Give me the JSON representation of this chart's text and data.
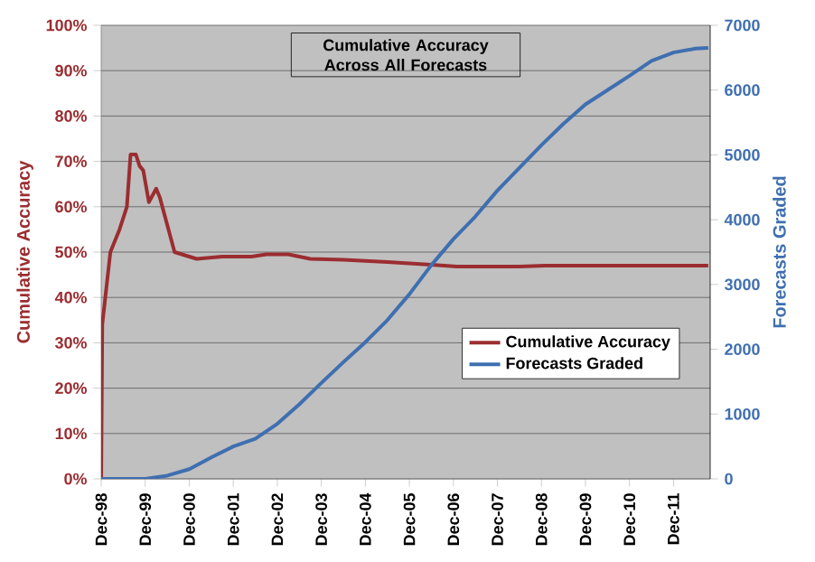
{
  "chart_data": {
    "type": "line",
    "title": "Cumulative Accuracy Across All Forecasts",
    "ylabel": "Cumulative Accuracy",
    "y2label": "Forecasts Graded",
    "xlim": [
      "1998-12-01",
      "2012-10-01"
    ],
    "xticks": [
      {
        "value": "1998-12-01",
        "label": "Dec-98"
      },
      {
        "value": "1999-12-01",
        "label": "Dec-99"
      },
      {
        "value": "2000-12-01",
        "label": "Dec-00"
      },
      {
        "value": "2001-12-01",
        "label": "Dec-01"
      },
      {
        "value": "2002-12-01",
        "label": "Dec-02"
      },
      {
        "value": "2003-12-01",
        "label": "Dec-03"
      },
      {
        "value": "2004-12-01",
        "label": "Dec-04"
      },
      {
        "value": "2005-12-01",
        "label": "Dec-05"
      },
      {
        "value": "2006-12-01",
        "label": "Dec-06"
      },
      {
        "value": "2007-12-01",
        "label": "Dec-07"
      },
      {
        "value": "2008-12-01",
        "label": "Dec-08"
      },
      {
        "value": "2009-12-01",
        "label": "Dec-09"
      },
      {
        "value": "2010-12-01",
        "label": "Dec-10"
      },
      {
        "value": "2011-12-01",
        "label": "Dec-11"
      }
    ],
    "ylim": [
      0,
      100
    ],
    "yticks": [
      {
        "value": 0,
        "label": "0%"
      },
      {
        "value": 10,
        "label": "10%"
      },
      {
        "value": 20,
        "label": "20%"
      },
      {
        "value": 30,
        "label": "30%"
      },
      {
        "value": 40,
        "label": "40%"
      },
      {
        "value": 50,
        "label": "50%"
      },
      {
        "value": 60,
        "label": "60%"
      },
      {
        "value": 70,
        "label": "70%"
      },
      {
        "value": 80,
        "label": "80%"
      },
      {
        "value": 90,
        "label": "90%"
      },
      {
        "value": 100,
        "label": "100%"
      }
    ],
    "y2lim": [
      0,
      7000
    ],
    "y2ticks": [
      0,
      1000,
      2000,
      3000,
      4000,
      5000,
      6000,
      7000
    ],
    "grid": "y",
    "legend": "bottom right",
    "marker": "none",
    "line_style": "solid",
    "series": [
      {
        "name": "Cumulative Accuracy",
        "color": "#9b2d30",
        "x": [
          "1998-12-01",
          "1998-12-10",
          "1999-02-15",
          "1999-05-01",
          "1999-07-01",
          "1999-08-01",
          "1999-09-15",
          "1999-10-15",
          "1999-11-15",
          "2000-01-01",
          "2000-03-01",
          "2000-04-01",
          "2000-06-01",
          "2000-08-01",
          "2000-10-01",
          "2001-02-01",
          "2001-09-01",
          "2002-05-01",
          "2002-09-01",
          "2003-03-01",
          "2003-09-01",
          "2004-06-01",
          "2005-06-01",
          "2006-06-01",
          "2007-01-01",
          "2008-06-01",
          "2009-01-01",
          "2012-09-15"
        ],
        "values": [
          0,
          34,
          50,
          55,
          60,
          71.5,
          71.5,
          69,
          68,
          61,
          64,
          62,
          56,
          50,
          49.5,
          48.5,
          49,
          49,
          49.5,
          49.5,
          48.5,
          48.3,
          47.8,
          47.2,
          46.8,
          46.8,
          47,
          47
        ]
      },
      {
        "name": "Forecasts Graded",
        "color": "#3f6fb0",
        "axis": "y2",
        "x": [
          "1998-12-01",
          "1999-12-01",
          "2000-06-01",
          "2000-12-01",
          "2001-06-01",
          "2001-12-01",
          "2002-06-01",
          "2002-12-01",
          "2003-06-01",
          "2003-12-01",
          "2004-06-01",
          "2004-12-01",
          "2005-06-01",
          "2005-12-01",
          "2006-06-01",
          "2006-12-01",
          "2007-06-01",
          "2007-12-01",
          "2008-06-01",
          "2008-12-01",
          "2009-06-01",
          "2009-12-01",
          "2010-06-01",
          "2010-12-01",
          "2011-06-01",
          "2011-12-01",
          "2012-06-01",
          "2012-09-15"
        ],
        "values": [
          0,
          0,
          50,
          150,
          330,
          500,
          620,
          850,
          1150,
          1480,
          1800,
          2110,
          2450,
          2850,
          3300,
          3700,
          4050,
          4450,
          4800,
          5150,
          5480,
          5780,
          6000,
          6220,
          6450,
          6580,
          6640,
          6650
        ]
      }
    ]
  }
}
